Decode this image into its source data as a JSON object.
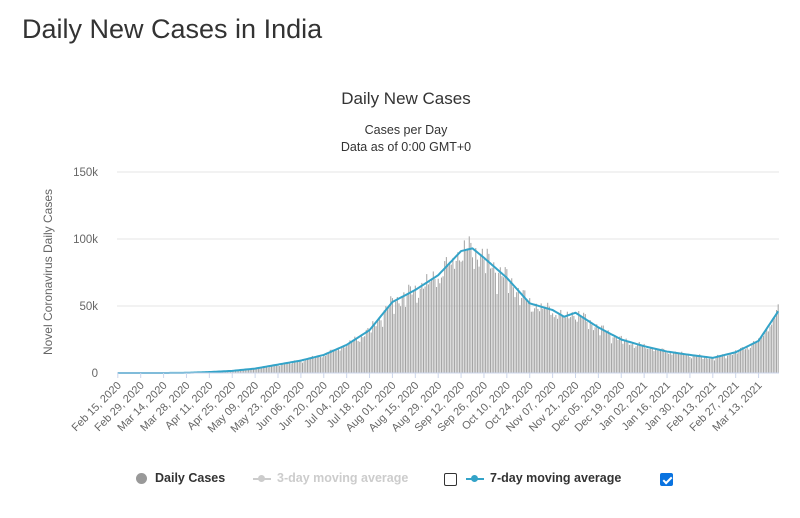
{
  "page": {
    "title": "Daily New Cases in India"
  },
  "legend": {
    "daily_label": "Daily Cases",
    "ma3_label": "3-day moving average",
    "ma7_label": "7-day moving average",
    "ma3_checked": false,
    "ma7_checked": true
  },
  "colors": {
    "bars": "#a3a3a3",
    "ma7": "#33a3c8",
    "checkbox_checked": "#0a73e0",
    "dim_legend": "#cccccc"
  },
  "chart_data": {
    "type": "bar",
    "title": "Daily New Cases",
    "subtitle": [
      "Cases per Day",
      "Data as of 0:00 GMT+0"
    ],
    "ylabel": "Novel Coronavirus Daily Cases",
    "xlabel": "",
    "ylim": [
      0,
      150000
    ],
    "yticks": [
      {
        "value": 0,
        "label": "0"
      },
      {
        "value": 50000,
        "label": "50k"
      },
      {
        "value": 100000,
        "label": "100k"
      },
      {
        "value": 150000,
        "label": "150k"
      }
    ],
    "grid": true,
    "legend_position": "bottom-center",
    "date_range": [
      "Feb 15, 2020",
      "Mar 25, 2021"
    ],
    "xticks": [
      "Feb 15, 2020",
      "Feb 29, 2020",
      "Mar 14, 2020",
      "Mar 28, 2020",
      "Apr 11, 2020",
      "Apr 25, 2020",
      "May 09, 2020",
      "May 23, 2020",
      "Jun 06, 2020",
      "Jun 20, 2020",
      "Jul 04, 2020",
      "Jul 18, 2020",
      "Aug 01, 2020",
      "Aug 15, 2020",
      "Aug 29, 2020",
      "Sep 12, 2020",
      "Sep 26, 2020",
      "Oct 10, 2020",
      "Oct 24, 2020",
      "Nov 07, 2020",
      "Nov 21, 2020",
      "Dec 05, 2020",
      "Dec 19, 2020",
      "Jan 02, 2021",
      "Jan 16, 2021",
      "Jan 30, 2021",
      "Feb 13, 2021",
      "Feb 27, 2021",
      "Mar 13, 2021"
    ],
    "series": [
      {
        "name": "7-day moving average",
        "type": "line",
        "points": [
          [
            "Feb 15, 2020",
            0
          ],
          [
            "Mar 14, 2020",
            10
          ],
          [
            "Mar 28, 2020",
            150
          ],
          [
            "Apr 11, 2020",
            700
          ],
          [
            "Apr 25, 2020",
            1600
          ],
          [
            "May 09, 2020",
            3300
          ],
          [
            "May 23, 2020",
            6300
          ],
          [
            "Jun 06, 2020",
            9300
          ],
          [
            "Jun 20, 2020",
            13500
          ],
          [
            "Jul 04, 2020",
            21000
          ],
          [
            "Jul 18, 2020",
            32000
          ],
          [
            "Aug 01, 2020",
            53000
          ],
          [
            "Aug 15, 2020",
            62000
          ],
          [
            "Aug 29, 2020",
            73000
          ],
          [
            "Sep 12, 2020",
            91000
          ],
          [
            "Sep 19, 2020",
            93000
          ],
          [
            "Sep 26, 2020",
            86000
          ],
          [
            "Oct 10, 2020",
            71000
          ],
          [
            "Oct 24, 2020",
            52000
          ],
          [
            "Nov 07, 2020",
            47000
          ],
          [
            "Nov 14, 2020",
            42000
          ],
          [
            "Nov 21, 2020",
            45000
          ],
          [
            "Dec 05, 2020",
            34000
          ],
          [
            "Dec 19, 2020",
            25000
          ],
          [
            "Jan 02, 2021",
            20000
          ],
          [
            "Jan 16, 2021",
            16000
          ],
          [
            "Jan 30, 2021",
            13500
          ],
          [
            "Feb 13, 2021",
            11300
          ],
          [
            "Feb 27, 2021",
            15500
          ],
          [
            "Mar 13, 2021",
            24000
          ],
          [
            "Mar 25, 2021",
            46000
          ]
        ]
      },
      {
        "name": "Daily Cases",
        "type": "bar",
        "note": "one bar per day, Feb 15, 2020 – Mar 25, 2021",
        "sample_values": [
          [
            "Apr 25, 2020",
            1700
          ],
          [
            "Jun 06, 2020",
            9900
          ],
          [
            "Jul 18, 2020",
            34000
          ],
          [
            "Aug 15, 2020",
            65000
          ],
          [
            "Sep 16, 2020",
            97800
          ],
          [
            "Oct 24, 2020",
            54000
          ],
          [
            "Nov 21, 2020",
            46000
          ],
          [
            "Jan 02, 2021",
            20000
          ],
          [
            "Feb 13, 2021",
            12000
          ],
          [
            "Mar 25, 2021",
            53500
          ]
        ]
      }
    ]
  }
}
